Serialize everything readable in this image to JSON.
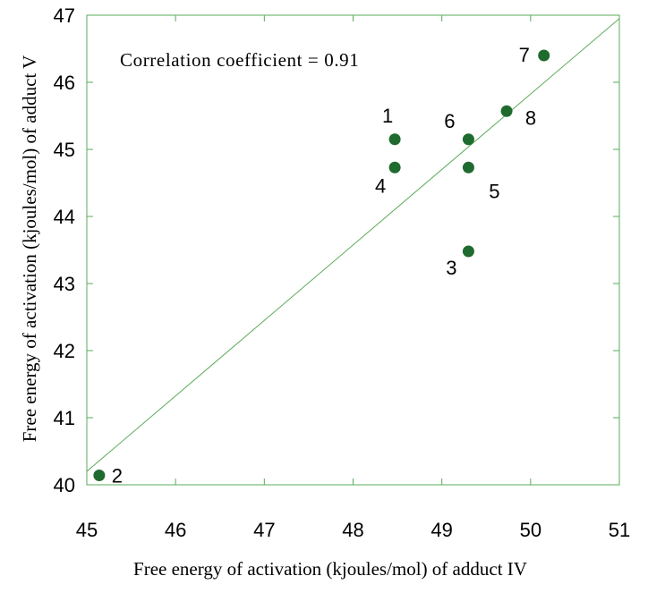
{
  "chart_data": {
    "type": "scatter",
    "xlabel": "Free energy of activation (kjoules/mol) of adduct IV",
    "ylabel": "Free energy of activation (kjoules/mol) of adduct V",
    "xlim": [
      45,
      51
    ],
    "ylim": [
      40,
      47
    ],
    "xticks": [
      45,
      46,
      47,
      48,
      49,
      50,
      51
    ],
    "yticks": [
      40,
      41,
      42,
      43,
      44,
      45,
      46,
      47
    ],
    "annotation": "Correlation coefficient = 0.91",
    "grid": false,
    "points": [
      {
        "label": "1",
        "x": 48.47,
        "y": 45.15
      },
      {
        "label": "2",
        "x": 45.14,
        "y": 40.14
      },
      {
        "label": "3",
        "x": 49.3,
        "y": 43.48
      },
      {
        "label": "4",
        "x": 48.47,
        "y": 44.73
      },
      {
        "label": "5",
        "x": 49.3,
        "y": 44.73
      },
      {
        "label": "6",
        "x": 49.3,
        "y": 45.15
      },
      {
        "label": "7",
        "x": 50.15,
        "y": 46.4
      },
      {
        "label": "8",
        "x": 49.73,
        "y": 45.57
      }
    ],
    "fit_line": {
      "x": [
        45,
        51
      ],
      "y": [
        40.2,
        46.95
      ]
    },
    "colors": {
      "points": "#1f6b2f",
      "line": "#5aab5a",
      "frame": "#5aab5a"
    }
  }
}
